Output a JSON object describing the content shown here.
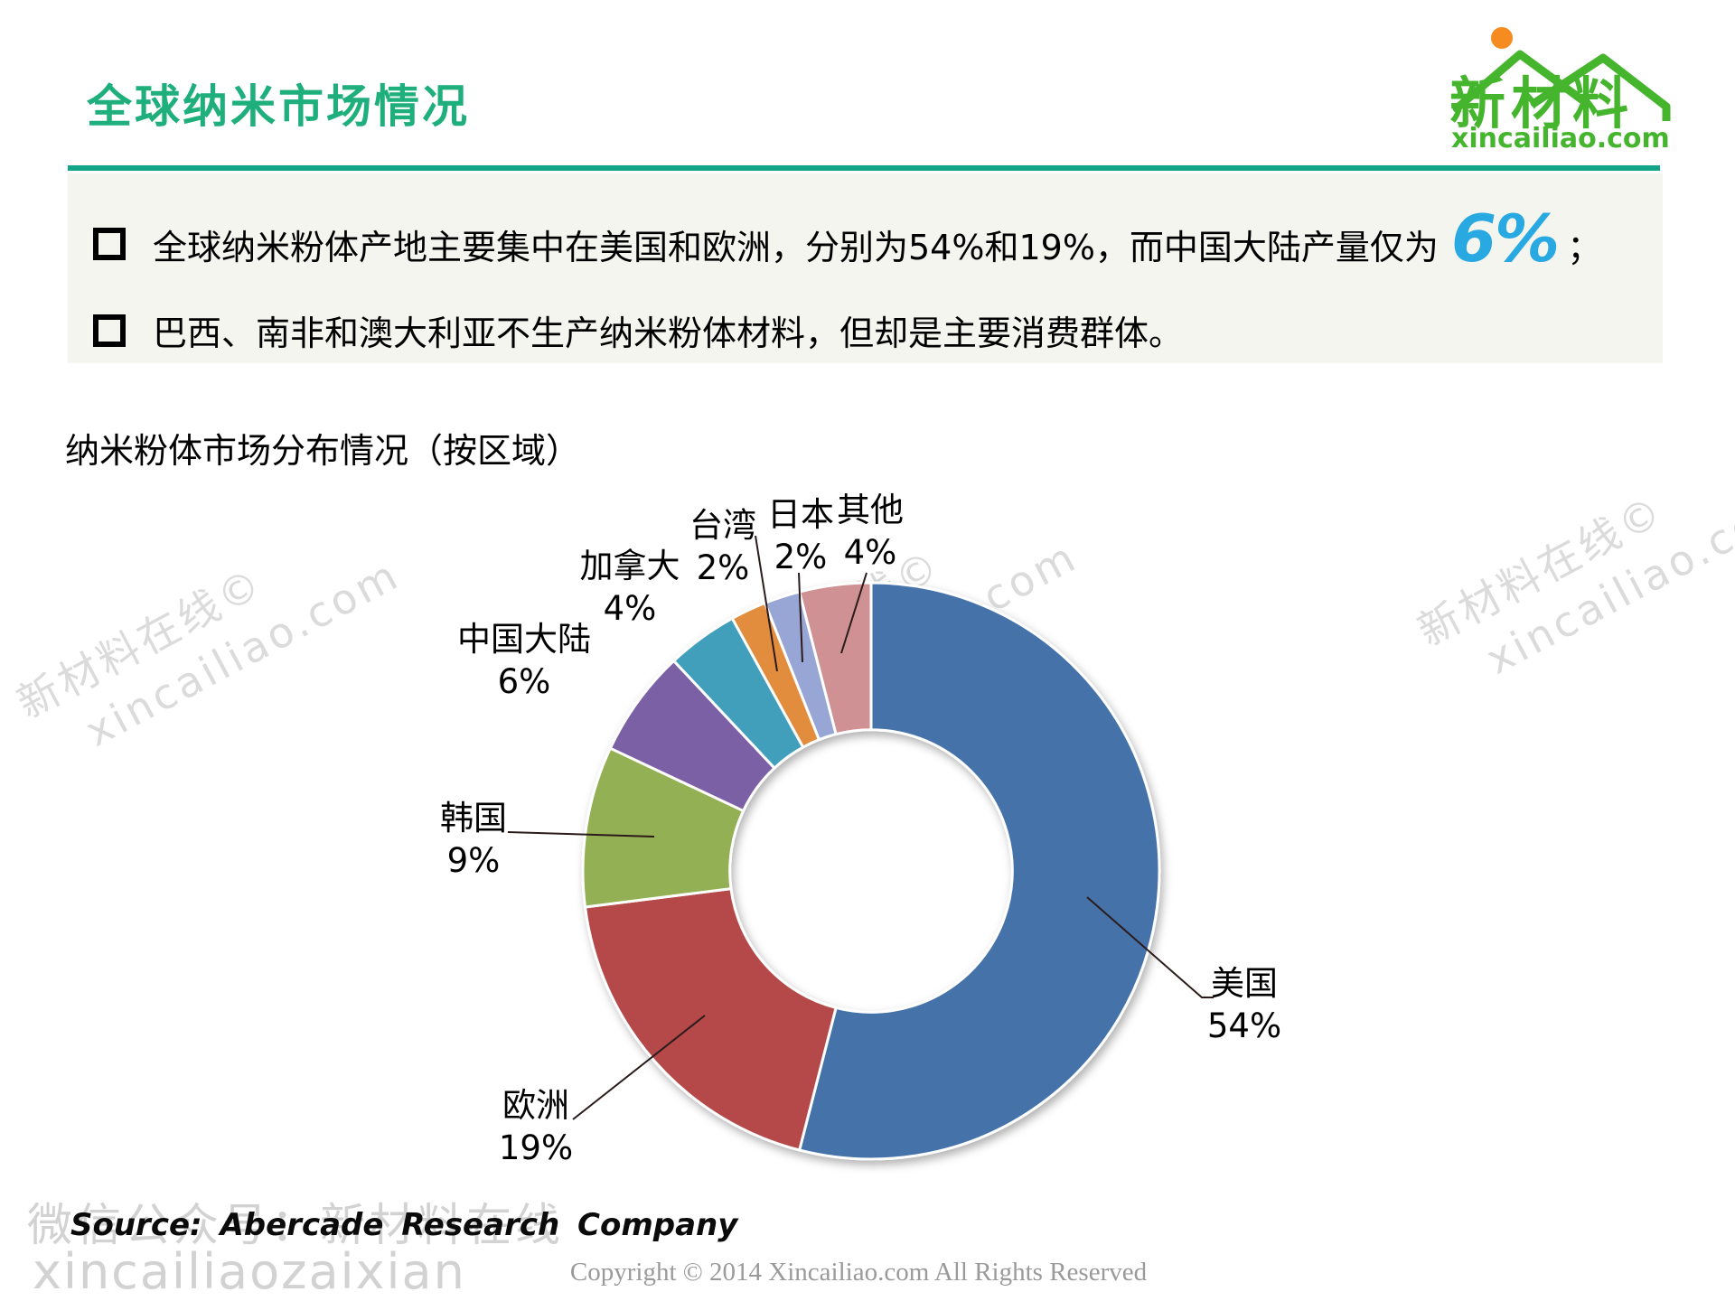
{
  "page": {
    "title": "全球纳米市场情况",
    "colors": {
      "title_green": "#1EAF7D",
      "rule_green": "#12A487",
      "logo_green": "#45B52E",
      "highlight_blue": "#29A9E1",
      "watermark_gray": "#DBDBDB",
      "bullet_box_bg": "#F5F5F0"
    }
  },
  "logo": {
    "brand": "新材料",
    "domain": "xincailiao.com",
    "sun_color": "#F68B1F"
  },
  "bullets": [
    {
      "pre": "全球纳米粉体产地主要集中在美国和欧洲，分别为54%和19%，而中国大陆产量仅为",
      "highlight": "6%",
      "post": "；"
    },
    {
      "pre": "巴西、南非和澳大利亚不生产纳米粉体材料，但却是主要消费群体。",
      "highlight": "",
      "post": ""
    }
  ],
  "chart_title": "纳米粉体市场分布情况（按区域）",
  "chart_data": {
    "type": "pie",
    "subtype": "donut",
    "title": "纳米粉体市场分布情况（按区域）",
    "labels": [
      "美国",
      "欧洲",
      "韩国",
      "中国大陆",
      "加拿大",
      "台湾",
      "日本",
      "其他"
    ],
    "values": [
      54,
      19,
      9,
      6,
      4,
      2,
      2,
      4
    ],
    "unit": "%",
    "colors": [
      "#4573A9",
      "#B54A48",
      "#94B054",
      "#7B61A5",
      "#429FBC",
      "#E28C3E",
      "#97A6D4",
      "#CF9193"
    ],
    "start_angle_deg": 0,
    "direction": "clockwise",
    "donut_hole_ratio": 0.49,
    "legend_position": "none",
    "data_labels": "outside-with-leader-lines"
  },
  "source": "Source: Abercade Research Company",
  "footer": "Copyright © 2014  Xincailiao.com  All Rights Reserved",
  "watermarks": {
    "diag_line1": "新材料在线©",
    "diag_line2": "xincailiao.com",
    "wechat": "微信公众号：新材料在线",
    "handle": "xincailiaozaixian"
  }
}
